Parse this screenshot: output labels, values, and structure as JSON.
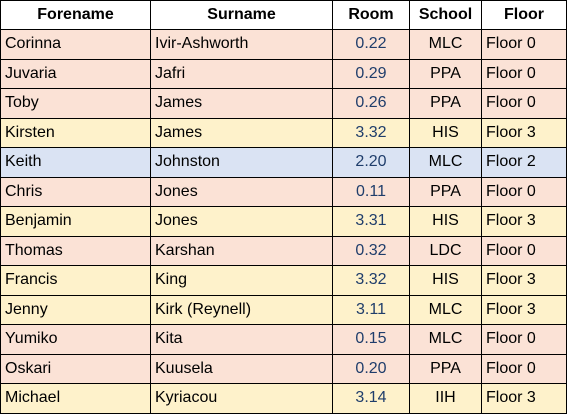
{
  "headers": [
    "Forename",
    "Surname",
    "Room",
    "School",
    "Floor"
  ],
  "colors": {
    "pink": "#fbe2d6",
    "yellow": "#fef2cb",
    "blue": "#dae3f3",
    "room_text": "#1f3d6b"
  },
  "rows": [
    {
      "forename": "Corinna",
      "surname": "Ivir-Ashworth",
      "room": "0.22",
      "school": "MLC",
      "floor": "Floor 0",
      "color": "pink"
    },
    {
      "forename": "Juvaria",
      "surname": "Jafri",
      "room": "0.29",
      "school": "PPA",
      "floor": "Floor 0",
      "color": "pink"
    },
    {
      "forename": "Toby",
      "surname": "James",
      "room": "0.26",
      "school": "PPA",
      "floor": "Floor 0",
      "color": "pink"
    },
    {
      "forename": "Kirsten",
      "surname": "James",
      "room": "3.32",
      "school": "HIS",
      "floor": "Floor 3",
      "color": "yellow"
    },
    {
      "forename": "Keith",
      "surname": "Johnston",
      "room": "2.20",
      "school": "MLC",
      "floor": "Floor 2",
      "color": "blue"
    },
    {
      "forename": "Chris",
      "surname": "Jones",
      "room": "0.11",
      "school": "PPA",
      "floor": "Floor 0",
      "color": "pink"
    },
    {
      "forename": "Benjamin",
      "surname": "Jones",
      "room": "3.31",
      "school": "HIS",
      "floor": "Floor 3",
      "color": "yellow"
    },
    {
      "forename": "Thomas",
      "surname": "Karshan",
      "room": "0.32",
      "school": "LDC",
      "floor": "Floor 0",
      "color": "pink"
    },
    {
      "forename": "Francis",
      "surname": "King",
      "room": "3.32",
      "school": "HIS",
      "floor": "Floor 3",
      "color": "yellow"
    },
    {
      "forename": "Jenny",
      "surname": "Kirk (Reynell)",
      "room": "3.11",
      "school": "MLC",
      "floor": "Floor 3",
      "color": "yellow"
    },
    {
      "forename": "Yumiko",
      "surname": "Kita",
      "room": "0.15",
      "school": "MLC",
      "floor": "Floor 0",
      "color": "pink"
    },
    {
      "forename": "Oskari",
      "surname": "Kuusela",
      "room": "0.20",
      "school": "PPA",
      "floor": "Floor 0",
      "color": "pink"
    },
    {
      "forename": "Michael",
      "surname": "Kyriacou",
      "room": "3.14",
      "school": "IIH",
      "floor": "Floor 3",
      "color": "yellow"
    }
  ]
}
